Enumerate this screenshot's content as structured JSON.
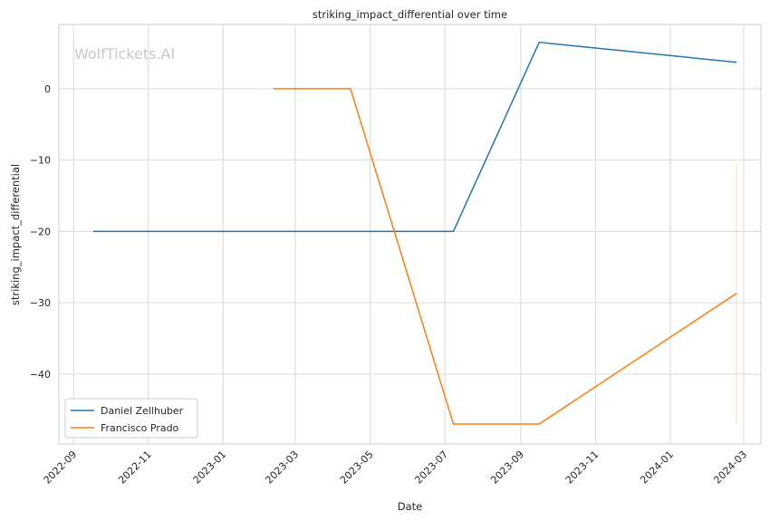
{
  "chart_data": {
    "type": "line",
    "title": "striking_impact_differential over time",
    "xlabel": "Date",
    "ylabel": "striking_impact_differential",
    "watermark": "WolfTickets.AI",
    "x_ticks": [
      "2022-09",
      "2022-11",
      "2023-01",
      "2023-03",
      "2023-05",
      "2023-07",
      "2023-09",
      "2023-11",
      "2024-01",
      "2024-03"
    ],
    "y_ticks": [
      0,
      -10,
      -20,
      -30,
      -40
    ],
    "y_tick_labels": [
      "0",
      "−10",
      "−20",
      "−30",
      "−40"
    ],
    "xlim": [
      "2022-08-20",
      "2024-03-15"
    ],
    "ylim": [
      -49.8,
      9
    ],
    "grid": true,
    "legend_position": "lower-left",
    "series": [
      {
        "name": "Daniel Zellhuber",
        "color": "#1f77b4",
        "points": [
          {
            "x": "2022-09-17",
            "y": -20
          },
          {
            "x": "2023-07-08",
            "y": -20
          },
          {
            "x": "2023-09-16",
            "y": 6.5
          },
          {
            "x": "2024-02-24",
            "y": 3.7
          }
        ]
      },
      {
        "name": "Francisco Prado",
        "color": "#ff7f0e",
        "points": [
          {
            "x": "2023-02-11",
            "y": 0
          },
          {
            "x": "2023-04-15",
            "y": 0
          },
          {
            "x": "2023-07-08",
            "y": -47
          },
          {
            "x": "2023-09-16",
            "y": -47
          },
          {
            "x": "2024-02-24",
            "y": -28.7
          }
        ]
      }
    ],
    "shaded_band": {
      "x": "2024-02-24",
      "y_range": [
        -47,
        -10.5
      ],
      "color": "#ff7f0e"
    }
  }
}
